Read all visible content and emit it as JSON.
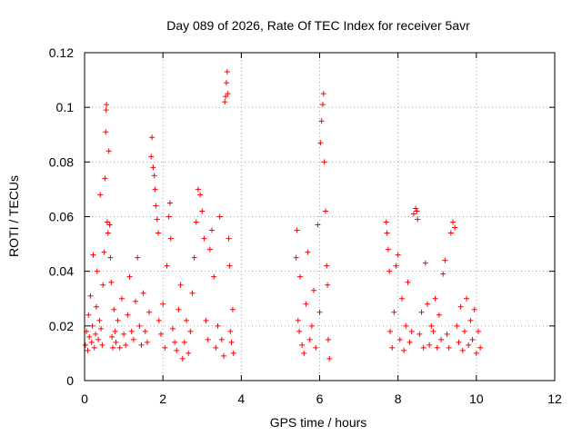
{
  "chart_data": {
    "type": "scatter",
    "title": "Day 089 of 2026, Rate Of TEC Index for receiver 5avr",
    "xlabel": "GPS time / hours",
    "ylabel": "ROTI / TECUs",
    "xlim": [
      0,
      12
    ],
    "ylim": [
      0,
      0.12
    ],
    "xticks": [
      0,
      2,
      4,
      6,
      8,
      10,
      12
    ],
    "xtick_labels": [
      "0",
      "2",
      "4",
      "6",
      "8",
      "10",
      "12"
    ],
    "yticks": [
      0,
      0.02,
      0.04,
      0.06,
      0.08,
      0.1,
      0.12
    ],
    "ytick_labels": [
      "0",
      "0.02",
      "0.04",
      "0.06",
      "0.08",
      "0.1",
      "0.12"
    ],
    "grid": true,
    "marker": "+",
    "color": "#ff0000",
    "series": [
      {
        "name": "ROTI",
        "points": [
          [
            0.02,
            0.013
          ],
          [
            0.05,
            0.018
          ],
          [
            0.08,
            0.011
          ],
          [
            0.1,
            0.024
          ],
          [
            0.12,
            0.016
          ],
          [
            0.15,
            0.031
          ],
          [
            0.18,
            0.014
          ],
          [
            0.2,
            0.02
          ],
          [
            0.22,
            0.046
          ],
          [
            0.25,
            0.012
          ],
          [
            0.28,
            0.017
          ],
          [
            0.3,
            0.027
          ],
          [
            0.32,
            0.04
          ],
          [
            0.35,
            0.015
          ],
          [
            0.38,
            0.022
          ],
          [
            0.4,
            0.068
          ],
          [
            0.42,
            0.019
          ],
          [
            0.45,
            0.013
          ],
          [
            0.47,
            0.035
          ],
          [
            0.5,
            0.047
          ],
          [
            0.52,
            0.074
          ],
          [
            0.54,
            0.091
          ],
          [
            0.55,
            0.099
          ],
          [
            0.56,
            0.101
          ],
          [
            0.58,
            0.058
          ],
          [
            0.6,
            0.054
          ],
          [
            0.62,
            0.084
          ],
          [
            0.64,
            0.057
          ],
          [
            0.66,
            0.045
          ],
          [
            0.68,
            0.036
          ],
          [
            0.7,
            0.016
          ],
          [
            0.72,
            0.012
          ],
          [
            0.75,
            0.026
          ],
          [
            0.78,
            0.018
          ],
          [
            0.8,
            0.014
          ],
          [
            0.85,
            0.022
          ],
          [
            0.9,
            0.012
          ],
          [
            0.95,
            0.03
          ],
          [
            1.0,
            0.017
          ],
          [
            1.05,
            0.013
          ],
          [
            1.1,
            0.024
          ],
          [
            1.15,
            0.038
          ],
          [
            1.2,
            0.018
          ],
          [
            1.25,
            0.015
          ],
          [
            1.3,
            0.029
          ],
          [
            1.35,
            0.045
          ],
          [
            1.4,
            0.02
          ],
          [
            1.45,
            0.013
          ],
          [
            1.5,
            0.032
          ],
          [
            1.55,
            0.018
          ],
          [
            1.6,
            0.014
          ],
          [
            1.65,
            0.025
          ],
          [
            1.7,
            0.082
          ],
          [
            1.72,
            0.089
          ],
          [
            1.75,
            0.078
          ],
          [
            1.78,
            0.075
          ],
          [
            1.8,
            0.07
          ],
          [
            1.82,
            0.064
          ],
          [
            1.85,
            0.059
          ],
          [
            1.88,
            0.054
          ],
          [
            1.9,
            0.022
          ],
          [
            1.95,
            0.017
          ],
          [
            2.0,
            0.028
          ],
          [
            2.05,
            0.012
          ],
          [
            2.1,
            0.042
          ],
          [
            2.15,
            0.06
          ],
          [
            2.18,
            0.065
          ],
          [
            2.2,
            0.052
          ],
          [
            2.25,
            0.019
          ],
          [
            2.3,
            0.014
          ],
          [
            2.35,
            0.011
          ],
          [
            2.4,
            0.026
          ],
          [
            2.45,
            0.035
          ],
          [
            2.5,
            0.008
          ],
          [
            2.55,
            0.014
          ],
          [
            2.6,
            0.022
          ],
          [
            2.65,
            0.01
          ],
          [
            2.7,
            0.018
          ],
          [
            2.75,
            0.032
          ],
          [
            2.8,
            0.045
          ],
          [
            2.85,
            0.058
          ],
          [
            2.9,
            0.07
          ],
          [
            2.95,
            0.068
          ],
          [
            3.0,
            0.062
          ],
          [
            3.05,
            0.052
          ],
          [
            3.1,
            0.022
          ],
          [
            3.15,
            0.015
          ],
          [
            3.2,
            0.048
          ],
          [
            3.25,
            0.055
          ],
          [
            3.3,
            0.038
          ],
          [
            3.35,
            0.012
          ],
          [
            3.4,
            0.02
          ],
          [
            3.45,
            0.06
          ],
          [
            3.5,
            0.015
          ],
          [
            3.55,
            0.009
          ],
          [
            3.58,
            0.102
          ],
          [
            3.6,
            0.104
          ],
          [
            3.62,
            0.109
          ],
          [
            3.64,
            0.113
          ],
          [
            3.66,
            0.105
          ],
          [
            3.68,
            0.052
          ],
          [
            3.7,
            0.042
          ],
          [
            3.72,
            0.018
          ],
          [
            3.75,
            0.014
          ],
          [
            3.78,
            0.026
          ],
          [
            3.8,
            0.01
          ],
          [
            5.4,
            0.045
          ],
          [
            5.42,
            0.055
          ],
          [
            5.45,
            0.022
          ],
          [
            5.48,
            0.018
          ],
          [
            5.5,
            0.038
          ],
          [
            5.55,
            0.013
          ],
          [
            5.6,
            0.01
          ],
          [
            5.65,
            0.028
          ],
          [
            5.7,
            0.047
          ],
          [
            5.75,
            0.015
          ],
          [
            5.8,
            0.02
          ],
          [
            5.85,
            0.033
          ],
          [
            5.9,
            0.012
          ],
          [
            5.95,
            0.057
          ],
          [
            6.0,
            0.025
          ],
          [
            6.02,
            0.087
          ],
          [
            6.05,
            0.095
          ],
          [
            6.08,
            0.101
          ],
          [
            6.1,
            0.105
          ],
          [
            6.12,
            0.08
          ],
          [
            6.15,
            0.062
          ],
          [
            6.18,
            0.042
          ],
          [
            6.2,
            0.035
          ],
          [
            6.22,
            0.015
          ],
          [
            6.25,
            0.008
          ],
          [
            7.7,
            0.058
          ],
          [
            7.72,
            0.054
          ],
          [
            7.75,
            0.048
          ],
          [
            7.78,
            0.04
          ],
          [
            7.8,
            0.018
          ],
          [
            7.85,
            0.012
          ],
          [
            7.9,
            0.025
          ],
          [
            7.95,
            0.042
          ],
          [
            8.0,
            0.046
          ],
          [
            8.05,
            0.015
          ],
          [
            8.1,
            0.03
          ],
          [
            8.15,
            0.011
          ],
          [
            8.2,
            0.02
          ],
          [
            8.25,
            0.036
          ],
          [
            8.3,
            0.014
          ],
          [
            8.35,
            0.018
          ],
          [
            8.4,
            0.061
          ],
          [
            8.45,
            0.063
          ],
          [
            8.48,
            0.062
          ],
          [
            8.5,
            0.059
          ],
          [
            8.55,
            0.017
          ],
          [
            8.6,
            0.025
          ],
          [
            8.65,
            0.012
          ],
          [
            8.7,
            0.043
          ],
          [
            8.75,
            0.028
          ],
          [
            8.8,
            0.013
          ],
          [
            8.85,
            0.02
          ],
          [
            8.9,
            0.018
          ],
          [
            8.95,
            0.03
          ],
          [
            9.0,
            0.012
          ],
          [
            9.05,
            0.024
          ],
          [
            9.1,
            0.015
          ],
          [
            9.15,
            0.039
          ],
          [
            9.2,
            0.044
          ],
          [
            9.25,
            0.017
          ],
          [
            9.3,
            0.012
          ],
          [
            9.35,
            0.054
          ],
          [
            9.4,
            0.058
          ],
          [
            9.45,
            0.056
          ],
          [
            9.5,
            0.02
          ],
          [
            9.55,
            0.014
          ],
          [
            9.6,
            0.027
          ],
          [
            9.65,
            0.011
          ],
          [
            9.7,
            0.018
          ],
          [
            9.75,
            0.03
          ],
          [
            9.8,
            0.013
          ],
          [
            9.85,
            0.022
          ],
          [
            9.9,
            0.015
          ],
          [
            9.95,
            0.026
          ],
          [
            10.0,
            0.01
          ],
          [
            10.05,
            0.018
          ],
          [
            10.1,
            0.012
          ]
        ]
      }
    ]
  }
}
